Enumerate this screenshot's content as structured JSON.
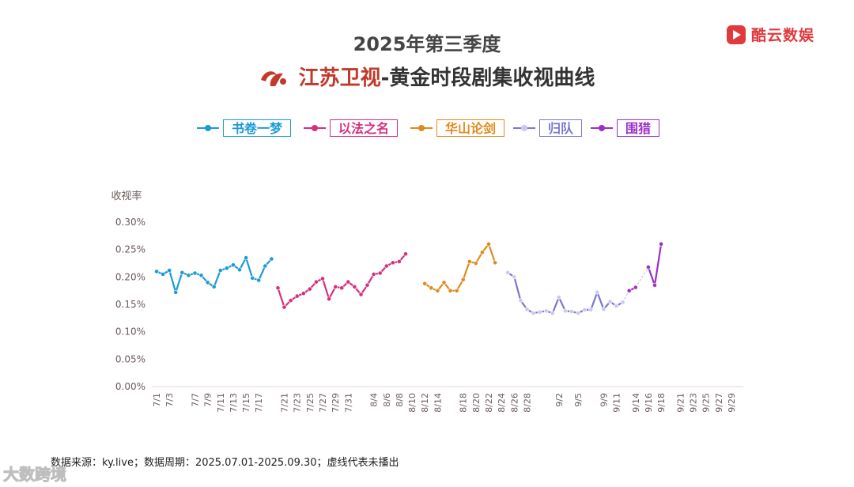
{
  "header": {
    "title_line1": "2025年第三季度",
    "channel": "江苏卫视",
    "title_rest": "-黄金时段剧集收视曲线",
    "brand": "酷云数娱"
  },
  "footer": {
    "source": "数据来源：ky.live；数据周期：2025.07.01-2025.09.30；虚线代表未播出"
  },
  "watermark": "大数跨境",
  "colors": {
    "axis_text": "#6b5b5b",
    "brand_red": "#e0393e",
    "channel_red": "#c0392b"
  },
  "chart_data": {
    "type": "line",
    "ylabel": "收视率",
    "y_ticks": [
      "0.30%",
      "0.25%",
      "0.20%",
      "0.15%",
      "0.10%",
      "0.05%",
      "0.00%"
    ],
    "ylim": [
      0,
      0.3
    ],
    "x_categories": [
      "7/1",
      "7/2",
      "7/3",
      "7/4",
      "7/5",
      "7/6",
      "7/7",
      "7/8",
      "7/9",
      "7/10",
      "7/11",
      "7/12",
      "7/13",
      "7/14",
      "7/15",
      "7/16",
      "7/17",
      "7/18",
      "7/19",
      "7/20",
      "7/21",
      "7/22",
      "7/23",
      "7/24",
      "7/25",
      "7/26",
      "7/27",
      "7/28",
      "7/29",
      "7/30",
      "7/31",
      "8/1",
      "8/2",
      "8/3",
      "8/4",
      "8/5",
      "8/6",
      "8/7",
      "8/8",
      "8/9",
      "8/10",
      "8/11",
      "8/12",
      "8/13",
      "8/14",
      "8/15",
      "8/16",
      "8/17",
      "8/18",
      "8/19",
      "8/20",
      "8/21",
      "8/22",
      "8/23",
      "8/24",
      "8/25",
      "8/26",
      "8/27",
      "8/28",
      "8/29",
      "8/30",
      "8/31",
      "9/1",
      "9/2",
      "9/3",
      "9/4",
      "9/5",
      "9/6",
      "9/7",
      "9/8",
      "9/9",
      "9/10",
      "9/11",
      "9/12",
      "9/13",
      "9/14",
      "9/15",
      "9/16",
      "9/17",
      "9/18",
      "9/19",
      "9/20",
      "9/21",
      "9/22",
      "9/23",
      "9/24",
      "9/25",
      "9/26",
      "9/27",
      "9/28",
      "9/29",
      "9/30"
    ],
    "x_tick_labels": [
      "7/1",
      "7/3",
      "7/7",
      "7/9",
      "7/11",
      "7/13",
      "7/15",
      "7/17",
      "7/21",
      "7/23",
      "7/25",
      "7/27",
      "7/29",
      "7/31",
      "8/4",
      "8/6",
      "8/8",
      "8/10",
      "8/12",
      "8/14",
      "8/18",
      "8/20",
      "8/22",
      "8/24",
      "8/26",
      "8/28",
      "9/2",
      "9/5",
      "9/9",
      "9/11",
      "9/14",
      "9/16",
      "9/18",
      "9/21",
      "9/23",
      "9/25",
      "9/27",
      "9/29"
    ],
    "series": [
      {
        "name": "书卷一梦",
        "color": "#1a9ad6",
        "points": [
          [
            "7/1",
            0.21
          ],
          [
            "7/2",
            0.205
          ],
          [
            "7/3",
            0.212
          ],
          [
            "7/4",
            0.172
          ],
          [
            "7/5",
            0.208
          ],
          [
            "7/6",
            0.203
          ],
          [
            "7/7",
            0.207
          ],
          [
            "7/8",
            0.203
          ],
          [
            "7/9",
            0.19
          ],
          [
            "7/10",
            0.182
          ],
          [
            "7/11",
            0.212
          ],
          [
            "7/12",
            0.216
          ],
          [
            "7/13",
            0.222
          ],
          [
            "7/14",
            0.213
          ],
          [
            "7/15",
            0.235
          ],
          [
            "7/16",
            0.198
          ],
          [
            "7/17",
            0.194
          ],
          [
            "7/18",
            0.22
          ],
          [
            "7/19",
            0.233
          ]
        ]
      },
      {
        "name": "以法之名",
        "color": "#d62f7f",
        "points": [
          [
            "7/20",
            0.18
          ],
          [
            "7/21",
            0.145
          ],
          [
            "7/22",
            0.157
          ],
          [
            "7/23",
            0.165
          ],
          [
            "7/24",
            0.17
          ],
          [
            "7/25",
            0.178
          ],
          [
            "7/26",
            0.191
          ],
          [
            "7/27",
            0.197
          ],
          [
            "7/28",
            0.16
          ],
          [
            "7/29",
            0.182
          ],
          [
            "7/30",
            0.18
          ],
          [
            "7/31",
            0.191
          ],
          [
            "8/1",
            0.182
          ],
          [
            "8/2",
            0.168
          ],
          [
            "8/3",
            0.185
          ],
          [
            "8/4",
            0.205
          ],
          [
            "8/5",
            0.207
          ],
          [
            "8/6",
            0.22
          ],
          [
            "8/7",
            0.226
          ],
          [
            "8/8",
            0.228
          ],
          [
            "8/9",
            0.242
          ]
        ]
      },
      {
        "name": "华山论剑",
        "color": "#e08a1e",
        "points": [
          [
            "8/12",
            0.188
          ],
          [
            "8/13",
            0.18
          ],
          [
            "8/14",
            0.175
          ],
          [
            "8/15",
            0.19
          ],
          [
            "8/16",
            0.175
          ],
          [
            "8/17",
            0.175
          ],
          [
            "8/18",
            0.195
          ],
          [
            "8/19",
            0.228
          ],
          [
            "8/20",
            0.225
          ],
          [
            "8/21",
            0.245
          ],
          [
            "8/22",
            0.26
          ],
          [
            "8/23",
            0.226
          ]
        ]
      },
      {
        "name": "归队",
        "color": "#7b77d0",
        "marker_color": "#cbc8f0",
        "points": [
          [
            "8/25",
            0.208
          ],
          [
            "8/26",
            0.2
          ],
          [
            "8/27",
            0.157
          ],
          [
            "8/28",
            0.141
          ],
          [
            "8/29",
            0.134
          ],
          [
            "8/30",
            0.136
          ],
          [
            "8/31",
            0.138
          ],
          [
            "9/1",
            0.134
          ],
          [
            "9/2",
            0.163
          ],
          [
            "9/3",
            0.138
          ],
          [
            "9/4",
            0.137
          ],
          [
            "9/5",
            0.134
          ],
          [
            "9/6",
            0.14
          ],
          [
            "9/7",
            0.14
          ],
          [
            "9/8",
            0.172
          ],
          [
            "9/9",
            0.141
          ],
          [
            "9/10",
            0.155
          ],
          [
            "9/11",
            0.147
          ],
          [
            "9/12",
            0.154
          ]
        ],
        "dashed_points": [
          [
            "9/12",
            0.154
          ],
          [
            "9/13",
            0.175
          ]
        ]
      },
      {
        "name": "围猎",
        "color": "#9b2fc9",
        "points": [
          [
            "9/13",
            0.175
          ],
          [
            "9/14",
            0.181
          ]
        ],
        "points2": [
          [
            "9/16",
            0.218
          ],
          [
            "9/17",
            0.185
          ],
          [
            "9/18",
            0.26
          ]
        ],
        "dashed_points": [
          [
            "9/14",
            0.181
          ],
          [
            "9/16",
            0.218
          ]
        ]
      }
    ]
  }
}
